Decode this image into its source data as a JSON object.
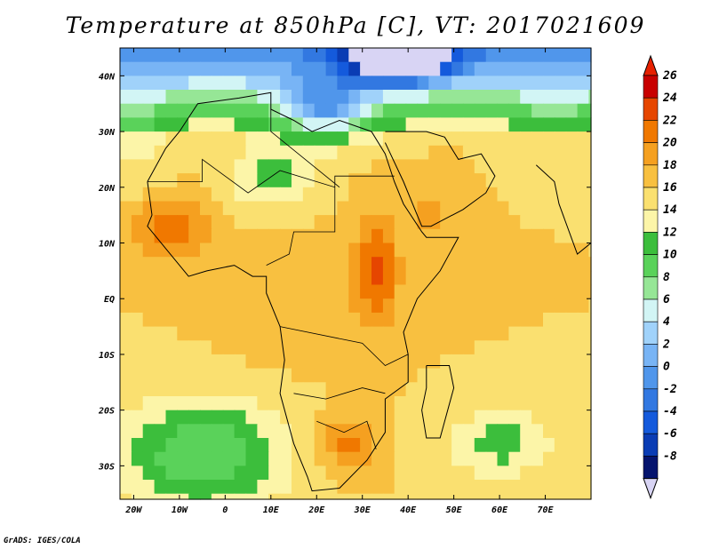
{
  "title": "Temperature at 850hPa [C], VT: 2017021609",
  "credit": "GrADS: IGES/COLA",
  "map": {
    "type": "heatmap",
    "projection": "lat-lon",
    "lon_range": [
      -23,
      80
    ],
    "lat_range": [
      -36,
      45
    ],
    "lon_ticks": [
      {
        "value": -20,
        "label": "20W"
      },
      {
        "value": -10,
        "label": "10W"
      },
      {
        "value": 0,
        "label": "0"
      },
      {
        "value": 10,
        "label": "10E"
      },
      {
        "value": 20,
        "label": "20E"
      },
      {
        "value": 30,
        "label": "30E"
      },
      {
        "value": 40,
        "label": "40E"
      },
      {
        "value": 50,
        "label": "50E"
      },
      {
        "value": 60,
        "label": "60E"
      },
      {
        "value": 70,
        "label": "70E"
      }
    ],
    "lat_ticks": [
      {
        "value": 40,
        "label": "40N"
      },
      {
        "value": 30,
        "label": "30N"
      },
      {
        "value": 20,
        "label": "20N"
      },
      {
        "value": 10,
        "label": "10N"
      },
      {
        "value": 0,
        "label": "EQ"
      },
      {
        "value": -10,
        "label": "10S"
      },
      {
        "value": -20,
        "label": "20S"
      },
      {
        "value": -30,
        "label": "30S"
      }
    ]
  },
  "colorbar": {
    "levels": [
      {
        "label": "26",
        "color": "#c80000"
      },
      {
        "label": "24",
        "color": "#e64600"
      },
      {
        "label": "22",
        "color": "#f07800"
      },
      {
        "label": "20",
        "color": "#f5a020"
      },
      {
        "label": "18",
        "color": "#f8c040"
      },
      {
        "label": "16",
        "color": "#fae070"
      },
      {
        "label": "14",
        "color": "#fcf5a8"
      },
      {
        "label": "12",
        "color": "#3cbe3c"
      },
      {
        "label": "10",
        "color": "#5ad25a"
      },
      {
        "label": "8",
        "color": "#96e696"
      },
      {
        "label": "6",
        "color": "#d2f5f5"
      },
      {
        "label": "4",
        "color": "#a0d2fa"
      },
      {
        "label": "2",
        "color": "#78b4f5"
      },
      {
        "label": "0",
        "color": "#5096eb"
      },
      {
        "label": "-2",
        "color": "#3278e1"
      },
      {
        "label": "-4",
        "color": "#145adc"
      },
      {
        "label": "-6",
        "color": "#0a3cb4"
      },
      {
        "label": "-8",
        "color": "#05146e"
      }
    ],
    "top_color": "#e62000",
    "bottom_color": "#d8d4f4"
  }
}
